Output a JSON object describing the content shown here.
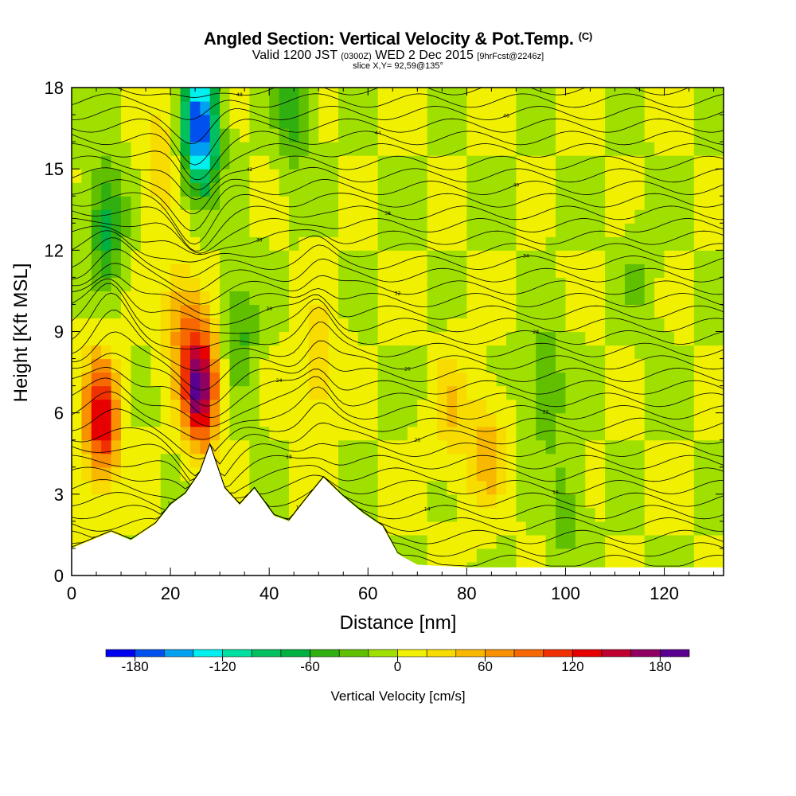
{
  "header": {
    "title_main": "Angled Section: Vertical Velocity & Pot.Temp.",
    "title_copyright": "(C)",
    "valid_prefix": "Valid 1200 JST",
    "valid_utc": "(0300Z)",
    "valid_date": "WED 2 Dec 2015",
    "forecast_tag": "[9hrFcst@2246z]",
    "slice": "slice X,Y= 92,59@135°"
  },
  "chart_data": {
    "type": "heatmap",
    "title": "Angled Section: Vertical Velocity & Pot.Temp.",
    "xlabel": "Distance [nm]",
    "ylabel": "Height [Kft MSL]",
    "xlim": [
      0,
      132
    ],
    "ylim": [
      0,
      18
    ],
    "x_ticks": [
      0,
      20,
      40,
      60,
      80,
      100,
      120
    ],
    "y_ticks": [
      0,
      3,
      6,
      9,
      12,
      15,
      18
    ],
    "colorbar": {
      "title": "Vertical Velocity [cm/s]",
      "ticks": [
        -180,
        -120,
        -60,
        0,
        60,
        120,
        180
      ],
      "levels": [
        -200,
        -180,
        -160,
        -140,
        -120,
        -100,
        -80,
        -60,
        -40,
        -20,
        0,
        20,
        40,
        60,
        80,
        100,
        120,
        140,
        160,
        180,
        200
      ],
      "colors": [
        "#0000f0",
        "#0050f0",
        "#00a0f0",
        "#00f0f0",
        "#00e0a0",
        "#00c060",
        "#00b040",
        "#30b010",
        "#60c000",
        "#a0e000",
        "#f0f000",
        "#f8dc00",
        "#f8b800",
        "#f89000",
        "#f86800",
        "#f03000",
        "#e80000",
        "#c00030",
        "#900060",
        "#5a0090"
      ]
    },
    "terrain_profile": [
      {
        "x": 0,
        "h": 1.0
      },
      {
        "x": 4,
        "h": 1.3
      },
      {
        "x": 8,
        "h": 1.6
      },
      {
        "x": 12,
        "h": 1.3
      },
      {
        "x": 17,
        "h": 1.9
      },
      {
        "x": 20,
        "h": 2.6
      },
      {
        "x": 23,
        "h": 3.0
      },
      {
        "x": 26,
        "h": 3.8
      },
      {
        "x": 28,
        "h": 4.8
      },
      {
        "x": 31,
        "h": 3.2
      },
      {
        "x": 34,
        "h": 2.6
      },
      {
        "x": 37,
        "h": 3.2
      },
      {
        "x": 41,
        "h": 2.2
      },
      {
        "x": 44,
        "h": 2.0
      },
      {
        "x": 47,
        "h": 2.7
      },
      {
        "x": 51,
        "h": 3.6
      },
      {
        "x": 55,
        "h": 2.9
      },
      {
        "x": 59,
        "h": 2.3
      },
      {
        "x": 63,
        "h": 1.8
      },
      {
        "x": 66,
        "h": 0.8
      },
      {
        "x": 70,
        "h": 0.4
      },
      {
        "x": 80,
        "h": 0.3
      },
      {
        "x": 132,
        "h": 0.3
      }
    ],
    "updrafts": [
      {
        "x": 6,
        "h": 5.8,
        "w": 140
      },
      {
        "x": 26,
        "h": 7.0,
        "w": 190
      },
      {
        "x": 50,
        "h": 7.8,
        "w": 40
      },
      {
        "x": 22,
        "h": 9.6,
        "w": 60
      },
      {
        "x": 84,
        "h": 4.5,
        "w": 50
      },
      {
        "x": 77,
        "h": 6.0,
        "w": 40
      },
      {
        "x": 18,
        "h": 15.5,
        "w": 35
      }
    ],
    "downdrafts": [
      {
        "x": 26,
        "h": 16.5,
        "w": -190
      },
      {
        "x": 7,
        "h": 13.0,
        "w": -70
      },
      {
        "x": 45,
        "h": 17.5,
        "w": -60
      },
      {
        "x": 34,
        "h": 9.0,
        "w": -45
      },
      {
        "x": 96,
        "h": 7.0,
        "w": -45
      },
      {
        "x": 100,
        "h": 2.5,
        "w": -30
      },
      {
        "x": 115,
        "h": 11.0,
        "w": -20
      }
    ],
    "isentrope_labels": [
      "10",
      "12",
      "14",
      "16",
      "18",
      "20",
      "22",
      "24",
      "26",
      "28",
      "30",
      "32",
      "34",
      "36",
      "38",
      "40",
      "42",
      "44",
      "46",
      "48",
      "50",
      "52",
      "54",
      "56",
      "58",
      "60"
    ]
  }
}
